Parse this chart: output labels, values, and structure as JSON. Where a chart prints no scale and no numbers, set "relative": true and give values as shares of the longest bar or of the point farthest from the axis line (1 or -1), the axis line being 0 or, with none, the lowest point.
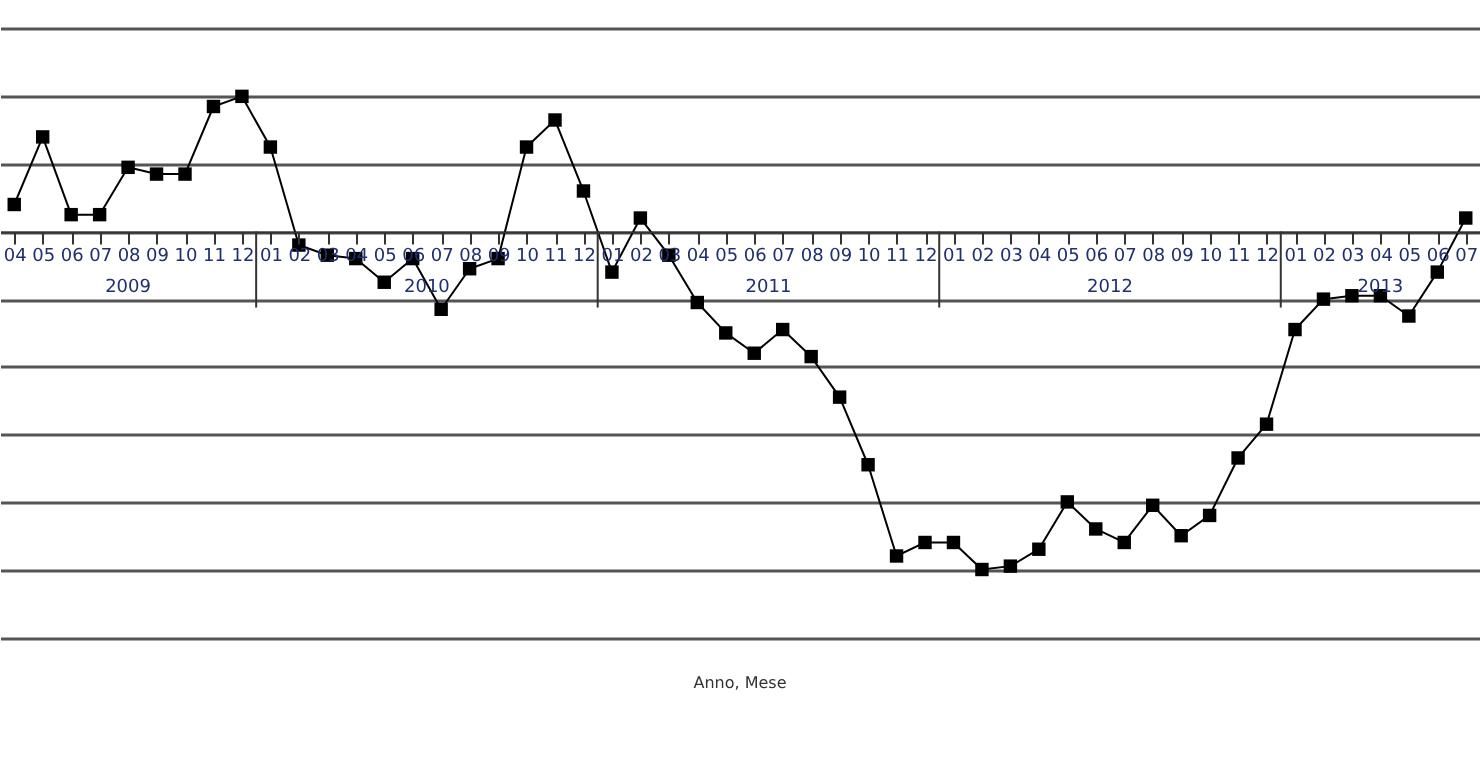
{
  "chart_data": {
    "type": "line",
    "relative": true,
    "grid": "y",
    "marker": "square",
    "line_style": "solid",
    "categories": [
      "04",
      "05",
      "06",
      "07",
      "08",
      "09",
      "10",
      "11",
      "12",
      "01",
      "02",
      "03",
      "04",
      "05",
      "06",
      "07",
      "08",
      "09",
      "10",
      "11",
      "12",
      "01",
      "02",
      "03",
      "04",
      "05",
      "06",
      "07",
      "08",
      "09",
      "10",
      "11",
      "12",
      "01",
      "02",
      "03",
      "04",
      "05",
      "06",
      "07",
      "08",
      "09",
      "10",
      "11",
      "12",
      "01",
      "02",
      "03",
      "04",
      "05",
      "06",
      "07"
    ],
    "annotations": [
      "2009",
      "2010",
      "2011",
      "2012",
      "2013",
      "Anno, Mese"
    ],
    "series": [
      {
        "color": "#000000",
        "values": [
          0.08,
          0.28,
          0.05,
          0.05,
          0.19,
          0.17,
          0.17,
          0.37,
          0.4,
          0.25,
          -0.04,
          -0.07,
          -0.08,
          -0.15,
          -0.08,
          -0.23,
          -0.11,
          -0.08,
          0.25,
          0.33,
          0.12,
          -0.12,
          0.04,
          -0.07,
          -0.21,
          -0.3,
          -0.36,
          -0.29,
          -0.37,
          -0.49,
          -0.69,
          -0.96,
          -0.92,
          -0.92,
          -1,
          -0.99,
          -0.94,
          -0.8,
          -0.88,
          -0.92,
          -0.81,
          -0.9,
          -0.84,
          -0.67,
          -0.57,
          -0.29,
          -0.2,
          -0.19,
          -0.19,
          -0.25,
          -0.12,
          0.04
        ]
      }
    ]
  }
}
